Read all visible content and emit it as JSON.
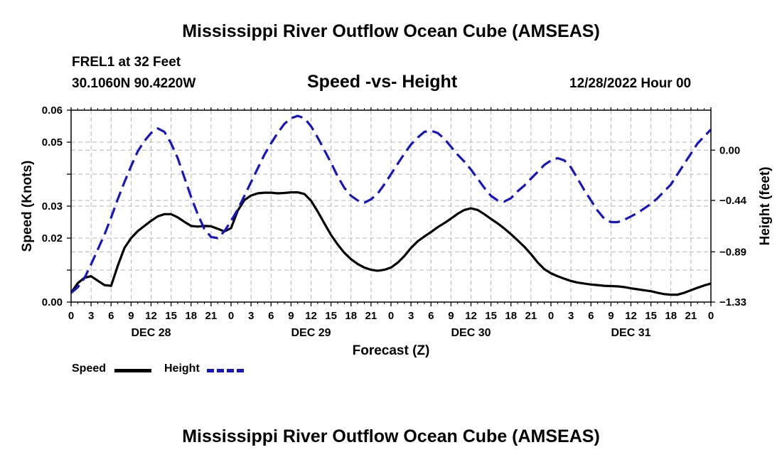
{
  "header": {
    "title": "Mississippi River Outflow Ocean Cube (AMSEAS)",
    "station": "FREL1 at 32 Feet",
    "coords": "30.1060N  90.4220W",
    "subtitle": "Speed -vs- Height",
    "run_date": "12/28/2022 Hour 00"
  },
  "footer": {
    "title": "Mississippi River Outflow Ocean Cube (AMSEAS)"
  },
  "legend": {
    "speed_label": "Speed",
    "height_label": "Height"
  },
  "colors": {
    "speed": "#000000",
    "height": "#1515c8",
    "grid": "#b4b4b4"
  },
  "chart_data": {
    "type": "line",
    "title": "Speed -vs- Height",
    "xlabel": "Forecast (Z)",
    "ylabel": "Speed (Knots)",
    "y2label": "Height (feet)",
    "xlim": [
      0,
      96
    ],
    "ylim": [
      0,
      0.06
    ],
    "y2lim": [
      -1.33,
      0.35
    ],
    "x_ticks": [
      0,
      3,
      6,
      9,
      12,
      15,
      18,
      21,
      24,
      27,
      30,
      33,
      36,
      39,
      42,
      45,
      48,
      51,
      54,
      57,
      60,
      63,
      66,
      69,
      72,
      75,
      78,
      81,
      84,
      87,
      90,
      93,
      96
    ],
    "x_tick_labels": [
      "0",
      "3",
      "6",
      "9",
      "12",
      "15",
      "18",
      "21",
      "0",
      "3",
      "6",
      "9",
      "12",
      "15",
      "18",
      "21",
      "0",
      "3",
      "6",
      "9",
      "12",
      "15",
      "18",
      "21",
      "0",
      "3",
      "6",
      "9",
      "12",
      "15",
      "18",
      "21",
      "0"
    ],
    "day_labels": [
      {
        "x": 12,
        "label": "DEC 28"
      },
      {
        "x": 36,
        "label": "DEC 29"
      },
      {
        "x": 60,
        "label": "DEC 30"
      },
      {
        "x": 84,
        "label": "DEC 31"
      }
    ],
    "y_ticks": [
      0,
      0.01,
      0.02,
      0.03,
      0.04,
      0.05,
      0.06
    ],
    "y_tick_labels": [
      "0.00",
      "",
      "0.02",
      "0.03",
      "",
      "0.05",
      "0.06"
    ],
    "y2_ticks": [
      -1.33,
      -0.89,
      -0.44,
      0.0
    ],
    "y2_tick_labels": [
      "−1.33",
      "−0.89",
      "−0.44",
      "0.00"
    ],
    "series": [
      {
        "name": "Speed",
        "axis": "left",
        "style": "solid",
        "x": [
          0,
          1,
          2,
          3,
          4,
          5,
          6,
          7,
          8,
          9,
          10,
          11,
          12,
          13,
          14,
          15,
          16,
          17,
          18,
          19,
          20,
          21,
          22,
          23,
          24,
          25,
          26,
          27,
          28,
          29,
          30,
          31,
          32,
          33,
          34,
          35,
          36,
          37,
          38,
          39,
          40,
          41,
          42,
          43,
          44,
          45,
          46,
          47,
          48,
          49,
          50,
          51,
          52,
          53,
          54,
          55,
          56,
          57,
          58,
          59,
          60,
          61,
          62,
          63,
          64,
          65,
          66,
          67,
          68,
          69,
          70,
          71,
          72,
          73,
          74,
          75,
          76,
          77,
          78,
          79,
          80,
          81,
          82,
          83,
          84,
          85,
          86,
          87,
          88,
          89,
          90,
          91,
          92,
          93,
          94,
          95,
          96
        ],
        "values": [
          0.0029,
          0.0059,
          0.0076,
          0.0081,
          0.0067,
          0.0053,
          0.0051,
          0.0113,
          0.0169,
          0.02,
          0.0222,
          0.0238,
          0.0254,
          0.0268,
          0.0275,
          0.0275,
          0.0265,
          0.0251,
          0.0238,
          0.0236,
          0.0238,
          0.0237,
          0.0229,
          0.0221,
          0.0231,
          0.0286,
          0.0319,
          0.0333,
          0.034,
          0.0342,
          0.0342,
          0.034,
          0.0341,
          0.0343,
          0.0343,
          0.0338,
          0.0317,
          0.0283,
          0.0246,
          0.021,
          0.018,
          0.0154,
          0.0134,
          0.0119,
          0.0108,
          0.0101,
          0.0098,
          0.0101,
          0.0108,
          0.0123,
          0.0144,
          0.0169,
          0.019,
          0.0205,
          0.0219,
          0.0234,
          0.0247,
          0.0261,
          0.0276,
          0.0288,
          0.0293,
          0.0288,
          0.0275,
          0.026,
          0.0246,
          0.023,
          0.0212,
          0.0193,
          0.0173,
          0.015,
          0.0124,
          0.0103,
          0.009,
          0.0081,
          0.0073,
          0.0066,
          0.0061,
          0.0058,
          0.0055,
          0.0053,
          0.0051,
          0.005,
          0.0049,
          0.0047,
          0.0043,
          0.004,
          0.0037,
          0.0034,
          0.0029,
          0.0025,
          0.0023,
          0.0023,
          0.0029,
          0.0037,
          0.0045,
          0.0052,
          0.0058
        ]
      },
      {
        "name": "Height",
        "axis": "right",
        "style": "dashed",
        "x": [
          0,
          1,
          2,
          3,
          4,
          5,
          6,
          7,
          8,
          9,
          10,
          11,
          12,
          13,
          14,
          15,
          16,
          17,
          18,
          19,
          20,
          21,
          22,
          23,
          24,
          25,
          26,
          27,
          28,
          29,
          30,
          31,
          32,
          33,
          34,
          35,
          36,
          37,
          38,
          39,
          40,
          41,
          42,
          43,
          44,
          45,
          46,
          47,
          48,
          49,
          50,
          51,
          52,
          53,
          54,
          55,
          56,
          57,
          58,
          59,
          60,
          61,
          62,
          63,
          64,
          65,
          66,
          67,
          68,
          69,
          70,
          71,
          72,
          73,
          74,
          75,
          76,
          77,
          78,
          79,
          80,
          81,
          82,
          83,
          84,
          85,
          86,
          87,
          88,
          89,
          90,
          91,
          92,
          93,
          94,
          95,
          96
        ],
        "values": [
          -1.25,
          -1.2,
          -1.12,
          -1.0,
          -0.87,
          -0.74,
          -0.59,
          -0.43,
          -0.28,
          -0.14,
          -0.01,
          0.08,
          0.15,
          0.19,
          0.16,
          0.06,
          -0.07,
          -0.24,
          -0.41,
          -0.56,
          -0.69,
          -0.76,
          -0.77,
          -0.71,
          -0.62,
          -0.52,
          -0.4,
          -0.28,
          -0.16,
          -0.04,
          0.06,
          0.15,
          0.23,
          0.28,
          0.3,
          0.28,
          0.21,
          0.11,
          0.0,
          -0.11,
          -0.23,
          -0.33,
          -0.4,
          -0.44,
          -0.46,
          -0.43,
          -0.38,
          -0.3,
          -0.21,
          -0.12,
          -0.03,
          0.05,
          0.11,
          0.16,
          0.17,
          0.15,
          0.1,
          0.03,
          -0.04,
          -0.1,
          -0.17,
          -0.25,
          -0.33,
          -0.4,
          -0.44,
          -0.45,
          -0.42,
          -0.36,
          -0.31,
          -0.25,
          -0.19,
          -0.13,
          -0.09,
          -0.07,
          -0.09,
          -0.15,
          -0.25,
          -0.35,
          -0.44,
          -0.53,
          -0.6,
          -0.63,
          -0.63,
          -0.61,
          -0.58,
          -0.55,
          -0.51,
          -0.47,
          -0.42,
          -0.36,
          -0.3,
          -0.21,
          -0.12,
          -0.03,
          0.06,
          0.12,
          0.18
        ]
      }
    ]
  }
}
